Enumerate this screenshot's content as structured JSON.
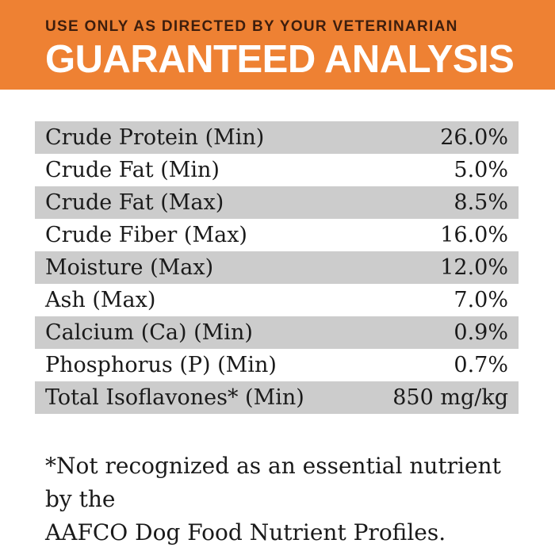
{
  "header": {
    "eyebrow": "USE ONLY AS DIRECTED BY YOUR VETERINARIAN",
    "title": "GUARANTEED ANALYSIS",
    "background_color": "#EE8133",
    "eyebrow_color": "#3E1E0D",
    "title_color": "#FFFFFF"
  },
  "table": {
    "stripe_color": "#CCCCCC",
    "text_color": "#1A1A1A",
    "rows": [
      {
        "label": "Crude Protein (Min)",
        "value": "26.0%"
      },
      {
        "label": "Crude Fat (Min)",
        "value": "5.0%"
      },
      {
        "label": "Crude Fat (Max)",
        "value": "8.5%"
      },
      {
        "label": "Crude Fiber (Max)",
        "value": "16.0%"
      },
      {
        "label": "Moisture (Max)",
        "value": "12.0%"
      },
      {
        "label": "Ash (Max)",
        "value": "7.0%"
      },
      {
        "label": "Calcium (Ca) (Min)",
        "value": "0.9%"
      },
      {
        "label": "Phosphorus (P) (Min)",
        "value": "0.7%"
      },
      {
        "label": "Total Isoflavones* (Min)",
        "value": "850 mg/kg"
      }
    ]
  },
  "footnote": {
    "line1": "*Not recognized as an essential nutrient by the",
    "line2": "AAFCO Dog Food Nutrient Profiles."
  }
}
